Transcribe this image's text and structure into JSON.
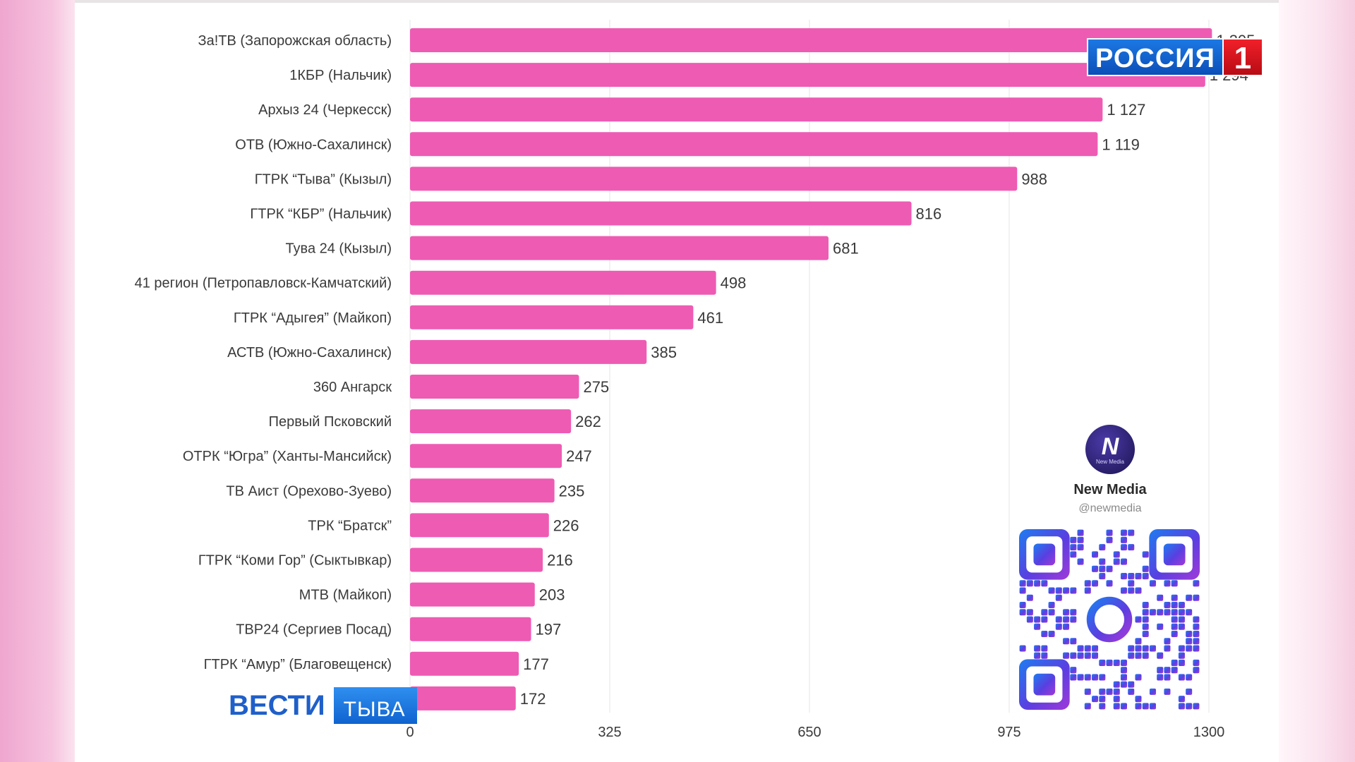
{
  "chart_data": {
    "type": "bar",
    "orientation": "horizontal",
    "categories": [
      "За!ТВ (Запорожская область)",
      "1КБР (Нальчик)",
      "Архыз 24 (Черкесск)",
      "ОТВ (Южно-Сахалинск)",
      "ГТРК “Тыва” (Кызыл)",
      "ГТРК “КБР” (Нальчик)",
      "Тува 24 (Кызыл)",
      "41 регион (Петропавловск-Камчатский)",
      "ГТРК “Адыгея” (Майкоп)",
      "АСТВ (Южно-Сахалинск)",
      "360 Ангарск",
      "Первый Псковский",
      "ОТРК “Югра” (Ханты-Мансийск)",
      "ТВ Аист (Орехово-Зуево)",
      "ТРК “Братск”",
      "ГТРК “Коми Гор” (Сыктывкар)",
      "МТВ (Майкоп)",
      "ТВР24 (Сергиев Посад)",
      "ГТРК “Амур” (Благовещенск)",
      ""
    ],
    "values": [
      1305,
      1294,
      1127,
      1119,
      988,
      816,
      681,
      498,
      461,
      385,
      275,
      262,
      247,
      235,
      226,
      216,
      203,
      197,
      177,
      172
    ],
    "value_labels": [
      "1 305",
      "1 294",
      "1 127",
      "1 119",
      "988",
      "816",
      "681",
      "498",
      "461",
      "385",
      "275",
      "262",
      "247",
      "235",
      "226",
      "216",
      "203",
      "197",
      "177",
      "172"
    ],
    "xlim": [
      0,
      1300
    ],
    "x_ticks": [
      0,
      325,
      650,
      975,
      1300
    ],
    "x_tick_labels": [
      "0",
      "325",
      "650",
      "975",
      "1300"
    ],
    "grid": "vertical",
    "bar_color": "#ee5bb3"
  },
  "overlay": {
    "channel_logo": {
      "word": "РОССИЯ",
      "number": "1",
      "blue": "#0b4fb8",
      "red": "#d9141c"
    },
    "news_logo": {
      "word": "ВЕСТИ",
      "region": "ТЫВА"
    },
    "new_media": {
      "avatar_letter": "N",
      "avatar_small": "New Media",
      "title": "New Media",
      "handle": "@newmedia",
      "qr_icon": "qr-code-icon"
    }
  }
}
